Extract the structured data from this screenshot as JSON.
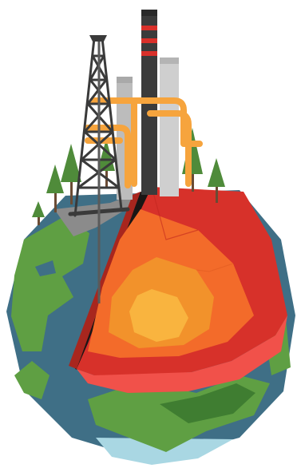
{
  "illustration": {
    "subject": "globe-cutaway-with-drilling-rig",
    "colors": {
      "background": "#ffffff",
      "ocean": "#3f6f86",
      "ocean_light": "#a9d7e3",
      "land": "#5f9f43",
      "land_dark": "#3f7d31",
      "crust_dark": "#1a1615",
      "crust_red": "#a8261e",
      "mantle_red": "#d7312a",
      "mantle_orange": "#f36b2a",
      "outer_core": "#f2922b",
      "inner_core": "#f9b43f",
      "pipe": "#f6a43d",
      "chimney_gray": "#bcbcbc",
      "chimney_dark": "#3b3b3b",
      "chimney_stripe": "#d9302a",
      "rig": "#3a3a3a",
      "ground_gray": "#8b8b8b",
      "tree_trunk": "#6a4b34",
      "tree_leaf": "#4f8b3a"
    }
  }
}
